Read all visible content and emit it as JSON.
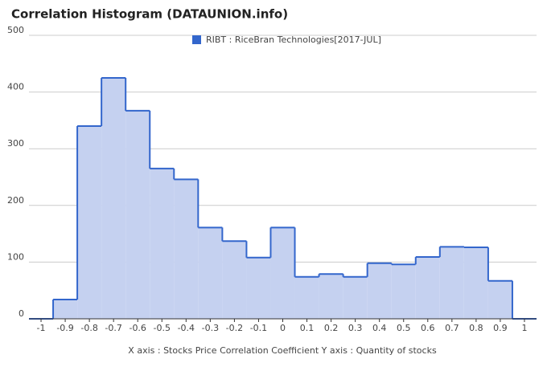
{
  "chart_data": {
    "type": "histogram",
    "title": "Correlation Histogram (DATAUNION.info)",
    "axis_label": "X axis : Stocks Price Correlation Coefficient  Y axis : Quantity of stocks",
    "bins": [
      -1.05,
      -0.95,
      -0.85,
      -0.75,
      -0.65,
      -0.55,
      -0.45,
      -0.35,
      -0.25,
      -0.15,
      -0.05,
      0.05,
      0.15,
      0.25,
      0.35,
      0.45,
      0.55,
      0.65,
      0.75,
      0.85,
      0.95,
      1.05
    ],
    "series": [
      {
        "name": "RIBT : RiceBran Technologies[2017-JUL]",
        "color": "#3366cc",
        "fill": "#c5d1f0",
        "values": [
          0,
          34,
          340,
          425,
          367,
          265,
          246,
          161,
          137,
          108,
          161,
          74,
          79,
          74,
          98,
          96,
          109,
          127,
          126,
          67,
          0
        ]
      }
    ],
    "xlim": [
      -1.05,
      1.05
    ],
    "ylim": [
      0,
      500
    ],
    "xticks": [
      -1,
      -0.9,
      -0.8,
      -0.7,
      -0.6,
      -0.5,
      -0.4,
      -0.3,
      -0.2,
      -0.1,
      0,
      0.1,
      0.2,
      0.3,
      0.4,
      0.5,
      0.6,
      0.7,
      0.8,
      0.9,
      1
    ],
    "yticks": [
      0,
      100,
      200,
      300,
      400,
      500
    ],
    "grid": true,
    "legend": "top"
  }
}
